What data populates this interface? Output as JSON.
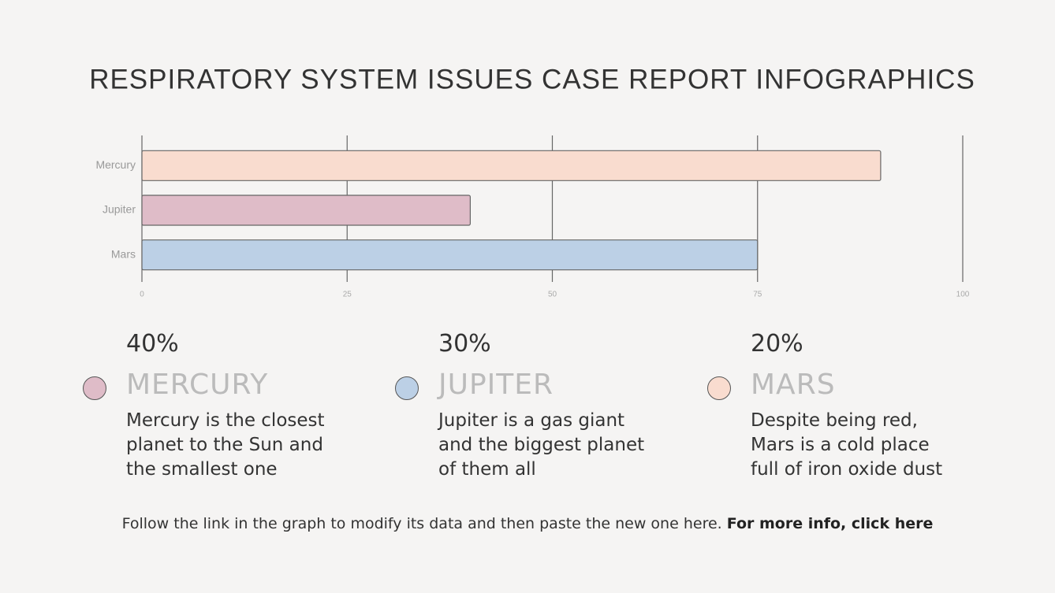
{
  "chart_data": {
    "type": "bar",
    "orientation": "horizontal",
    "title": "RESPIRATORY SYSTEM ISSUES CASE REPORT INFOGRAPHICS",
    "categories": [
      "Mercury",
      "Jupiter",
      "Mars"
    ],
    "values": [
      90,
      40,
      75
    ],
    "colors": [
      "#f9dccf",
      "#dfbcc8",
      "#bcd0e6"
    ],
    "xlim": [
      0,
      100
    ],
    "xticks": [
      0,
      25,
      50,
      75,
      100
    ],
    "grid": true
  },
  "cards": [
    {
      "percent": "40%",
      "name": "MERCURY",
      "color": "#dfbcc8",
      "description": "Mercury is the closest planet to the Sun and the smallest one"
    },
    {
      "percent": "30%",
      "name": "JUPITER",
      "color": "#bcd0e6",
      "description": "Jupiter is a gas giant and the biggest planet of them all"
    },
    {
      "percent": "20%",
      "name": "MARS",
      "color": "#f9dccf",
      "description": "Despite being red, Mars is a cold place full of iron oxide dust"
    }
  ],
  "footer": {
    "text": "Follow the link in the graph to modify its data and then paste the new one here.",
    "link": "For more info, click here"
  }
}
